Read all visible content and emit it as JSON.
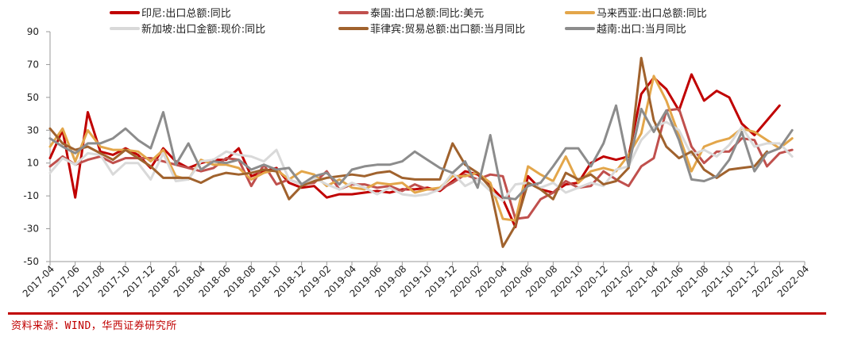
{
  "source": "资料来源：WIND，华西证券研究所",
  "colors": {
    "accent_rule": "#c00000"
  },
  "chart_data": {
    "type": "line",
    "x": [
      "2017-04",
      "2017-05",
      "2017-06",
      "2017-07",
      "2017-08",
      "2017-09",
      "2017-10",
      "2017-11",
      "2017-12",
      "2018-01",
      "2018-02",
      "2018-03",
      "2018-04",
      "2018-05",
      "2018-06",
      "2018-07",
      "2018-08",
      "2018-09",
      "2018-10",
      "2018-11",
      "2018-12",
      "2019-01",
      "2019-02",
      "2019-03",
      "2019-04",
      "2019-05",
      "2019-06",
      "2019-07",
      "2019-08",
      "2019-09",
      "2019-10",
      "2019-11",
      "2019-12",
      "2020-01",
      "2020-02",
      "2020-03",
      "2020-04",
      "2020-05",
      "2020-06",
      "2020-07",
      "2020-08",
      "2020-09",
      "2020-10",
      "2020-11",
      "2020-12",
      "2021-01",
      "2021-02",
      "2021-03",
      "2021-04",
      "2021-05",
      "2021-06",
      "2021-07",
      "2021-08",
      "2021-09",
      "2021-10",
      "2021-11",
      "2021-12",
      "2022-01",
      "2022-02",
      "2022-03",
      "2022-04"
    ],
    "x_tick_labels": [
      "2017-04",
      "2017-06",
      "2017-08",
      "2017-10",
      "2017-12",
      "2018-02",
      "2018-04",
      "2018-06",
      "2018-08",
      "2018-10",
      "2018-12",
      "2019-02",
      "2019-04",
      "2019-06",
      "2019-08",
      "2019-10",
      "2019-12",
      "2020-02",
      "2020-04",
      "2020-06",
      "2020-08",
      "2020-10",
      "2020-12",
      "2021-02",
      "2021-04",
      "2021-06",
      "2021-08",
      "2021-10",
      "2021-12",
      "2022-02",
      "2022-04"
    ],
    "ylim": [
      -50,
      90
    ],
    "y_ticks": [
      90,
      70,
      50,
      30,
      10,
      -10,
      -30,
      -50
    ],
    "grid": false,
    "legend_position": "top",
    "series": [
      {
        "name": "印尼:出口总额:同比",
        "color": "#c00000",
        "width": 3,
        "values": [
          13,
          30,
          -11,
          41,
          17,
          15,
          19,
          15,
          7,
          19,
          11,
          7,
          10,
          12,
          12,
          19,
          2,
          5,
          7,
          -2,
          -5,
          -4,
          -11,
          -9,
          -9,
          -8,
          -7,
          -8,
          -6,
          -6,
          -5,
          -7,
          -1,
          5,
          3,
          -4,
          -12,
          -29,
          2,
          -6,
          -8,
          -3,
          -2,
          10,
          14,
          12,
          14,
          52,
          62,
          55,
          42,
          64,
          48,
          54,
          50,
          34,
          27,
          36,
          45,
          null,
          null
        ]
      },
      {
        "name": "泰国:出口总额:同比:美元",
        "color": "#c0504d",
        "width": 3,
        "values": [
          8,
          14,
          9,
          12,
          14,
          10,
          13,
          13,
          13,
          11,
          9,
          7,
          5,
          7,
          13,
          12,
          -4,
          9,
          -3,
          0,
          -3,
          -2,
          5,
          -6,
          -3,
          -3,
          -5,
          -4,
          -7,
          -3,
          -6,
          -6,
          -2,
          3,
          0,
          3,
          2,
          -24,
          -23,
          -12,
          -8,
          -1,
          -5,
          -4,
          5,
          0,
          -4,
          8,
          13,
          42,
          43,
          20,
          10,
          17,
          17,
          25,
          24,
          8,
          16,
          18,
          null
        ]
      },
      {
        "name": "马来西亚:出口总额:同比",
        "color": "#e3a64a",
        "width": 3,
        "values": [
          20,
          31,
          11,
          30,
          20,
          18,
          18,
          17,
          11,
          18,
          2,
          0,
          12,
          9,
          9,
          7,
          0,
          4,
          6,
          0,
          5,
          3,
          -4,
          0,
          -5,
          -6,
          -2,
          -3,
          -2,
          -8,
          -6,
          -5,
          2,
          2,
          4,
          -2,
          -24,
          -25,
          8,
          3,
          -1,
          14,
          -2,
          5,
          7,
          5,
          15,
          28,
          63,
          48,
          27,
          5,
          20,
          23,
          25,
          31,
          29,
          24,
          19,
          25,
          null
        ]
      },
      {
        "name": "新加坡:出口金额:现价:同比",
        "color": "#d9d9d9",
        "width": 3,
        "values": [
          4,
          13,
          9,
          16,
          15,
          3,
          10,
          10,
          0,
          16,
          -1,
          0,
          11,
          12,
          17,
          15,
          14,
          11,
          18,
          0,
          -3,
          1,
          -3,
          -6,
          -2,
          -5,
          -9,
          -5,
          -9,
          -10,
          -9,
          -6,
          4,
          -4,
          0,
          -7,
          -13,
          -3,
          -2,
          -5,
          -2,
          -8,
          -5,
          -2,
          -4,
          6,
          8,
          24,
          32,
          35,
          30,
          15,
          18,
          14,
          21,
          32,
          20,
          22,
          22,
          14,
          null
        ]
      },
      {
        "name": "菲律宾:贸易总额:出口额:当月同比",
        "color": "#a0622d",
        "width": 3,
        "values": [
          31,
          22,
          18,
          20,
          16,
          12,
          18,
          13,
          8,
          1,
          1,
          1,
          -2,
          2,
          4,
          3,
          4,
          6,
          5,
          -12,
          -4,
          -1,
          1,
          2,
          3,
          2,
          4,
          5,
          1,
          0,
          0,
          0,
          22,
          9,
          4,
          -5,
          -41,
          -28,
          -2,
          -6,
          -12,
          4,
          0,
          3,
          -3,
          -1,
          7,
          74,
          36,
          20,
          13,
          17,
          6,
          1,
          6,
          7,
          8,
          17,
          null,
          null,
          null
        ]
      },
      {
        "name": "越南:出口:当月同比",
        "color": "#8c8c8c",
        "width": 3,
        "values": [
          25,
          20,
          16,
          22,
          22,
          25,
          31,
          24,
          19,
          41,
          9,
          22,
          6,
          11,
          10,
          12,
          6,
          9,
          6,
          7,
          -3,
          2,
          4,
          -3,
          6,
          8,
          9,
          9,
          11,
          17,
          12,
          7,
          4,
          11,
          -5,
          27,
          -11,
          -12,
          -4,
          -2,
          8,
          19,
          19,
          8,
          22,
          45,
          8,
          43,
          29,
          42,
          24,
          0,
          -1,
          2,
          12,
          29,
          5,
          16,
          19,
          30,
          null
        ]
      }
    ]
  }
}
